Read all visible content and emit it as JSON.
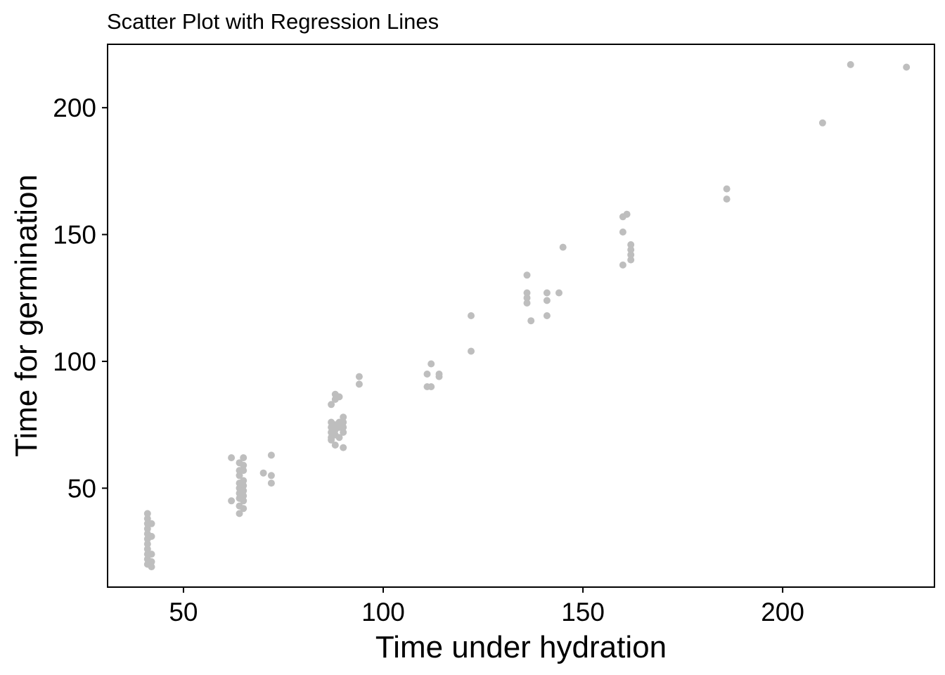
{
  "chart_data": {
    "type": "scatter",
    "title": "Scatter Plot with Regression Lines",
    "xlabel": "Time under hydration",
    "ylabel": "Time for germination",
    "xlim": [
      31,
      238
    ],
    "ylim": [
      11,
      225
    ],
    "xticks": [
      50,
      100,
      150,
      200
    ],
    "yticks": [
      50,
      100,
      150,
      200
    ],
    "grid": false,
    "legend": "none",
    "point_color": "#BEBEBE",
    "points": [
      [
        41,
        40
      ],
      [
        41,
        38
      ],
      [
        41,
        36
      ],
      [
        41,
        34
      ],
      [
        41,
        32
      ],
      [
        41,
        30
      ],
      [
        41,
        28
      ],
      [
        41,
        26
      ],
      [
        41,
        24
      ],
      [
        41,
        22
      ],
      [
        41,
        20
      ],
      [
        42,
        36
      ],
      [
        42,
        31
      ],
      [
        42,
        24
      ],
      [
        42,
        21
      ],
      [
        42,
        19
      ],
      [
        62,
        62
      ],
      [
        62,
        45
      ],
      [
        64,
        40
      ],
      [
        64,
        43
      ],
      [
        64,
        46
      ],
      [
        64,
        48
      ],
      [
        64,
        50
      ],
      [
        64,
        52
      ],
      [
        64,
        55
      ],
      [
        64,
        57
      ],
      [
        64,
        60
      ],
      [
        65,
        62
      ],
      [
        65,
        59
      ],
      [
        65,
        57
      ],
      [
        65,
        53
      ],
      [
        65,
        51
      ],
      [
        65,
        49
      ],
      [
        65,
        47
      ],
      [
        65,
        45
      ],
      [
        65,
        42
      ],
      [
        70,
        56
      ],
      [
        72,
        63
      ],
      [
        72,
        55
      ],
      [
        72,
        52
      ],
      [
        87,
        83
      ],
      [
        87,
        76
      ],
      [
        87,
        74
      ],
      [
        87,
        72
      ],
      [
        87,
        70
      ],
      [
        87,
        69
      ],
      [
        88,
        87
      ],
      [
        88,
        85
      ],
      [
        88,
        75
      ],
      [
        88,
        73
      ],
      [
        88,
        71
      ],
      [
        88,
        67
      ],
      [
        89,
        86
      ],
      [
        89,
        76
      ],
      [
        89,
        74
      ],
      [
        89,
        70
      ],
      [
        90,
        78
      ],
      [
        90,
        76
      ],
      [
        90,
        74
      ],
      [
        90,
        72
      ],
      [
        90,
        66
      ],
      [
        94,
        94
      ],
      [
        94,
        91
      ],
      [
        111,
        95
      ],
      [
        111,
        90
      ],
      [
        112,
        99
      ],
      [
        112,
        90
      ],
      [
        114,
        95
      ],
      [
        114,
        94
      ],
      [
        122,
        118
      ],
      [
        122,
        104
      ],
      [
        136,
        134
      ],
      [
        136,
        127
      ],
      [
        136,
        125
      ],
      [
        136,
        123
      ],
      [
        137,
        116
      ],
      [
        141,
        127
      ],
      [
        141,
        124
      ],
      [
        141,
        118
      ],
      [
        144,
        127
      ],
      [
        145,
        145
      ],
      [
        160,
        157
      ],
      [
        160,
        151
      ],
      [
        160,
        138
      ],
      [
        161,
        158
      ],
      [
        162,
        146
      ],
      [
        162,
        144
      ],
      [
        162,
        142
      ],
      [
        162,
        140
      ],
      [
        186,
        168
      ],
      [
        186,
        164
      ],
      [
        210,
        194
      ],
      [
        217,
        217
      ],
      [
        231,
        216
      ]
    ]
  }
}
